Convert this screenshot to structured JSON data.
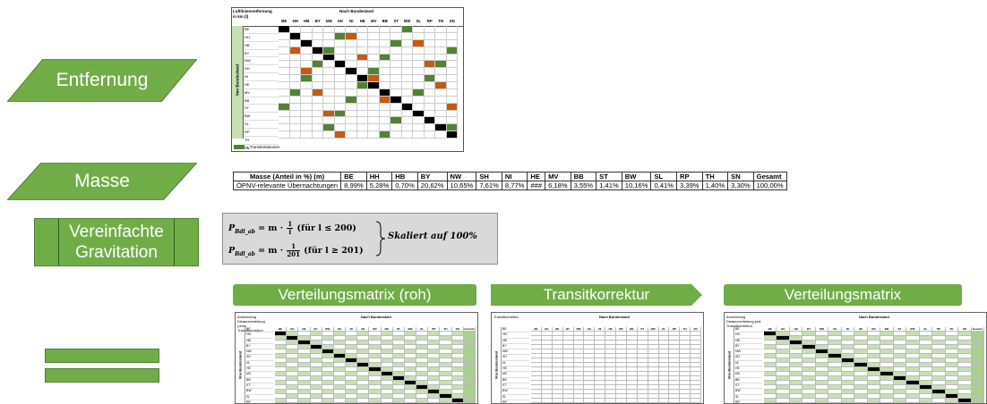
{
  "left": {
    "entfernung_label": "Entfernung",
    "masse_label": "Masse",
    "gravitation_label": "Vereinfachte Gravitation"
  },
  "distance_matrix": {
    "corner_title": "Luftlinienentfernung in km (l)",
    "col_group": "Nach Bundesland",
    "row_group": "Von Bundesland",
    "states": [
      "BE",
      "HH",
      "HB",
      "BY",
      "NW",
      "SH",
      "NI",
      "HE",
      "MV",
      "BB",
      "ST",
      "BW",
      "SL",
      "RP",
      "TH",
      "SN"
    ],
    "legend": "= Transitrelationen"
  },
  "mass_table": {
    "header_label": "Masse (Anteil in %) (m)",
    "row_label": "ÖPNV-relevante Übernachtungen",
    "columns": [
      "BE",
      "HH",
      "HB",
      "BY",
      "NW",
      "SH",
      "NI",
      "HE",
      "MV",
      "BB",
      "ST",
      "BW",
      "SL",
      "RP",
      "TH",
      "SN",
      "Gesamt"
    ],
    "values": [
      "8,99%",
      "5,28%",
      "0,70%",
      "20,62%",
      "10,65%",
      "7,61%",
      "8,77%",
      "###",
      "6,18%",
      "3,55%",
      "1,41%",
      "10,16%",
      "0,41%",
      "3,39%",
      "1,40%",
      "3,30%",
      "100,00%"
    ]
  },
  "formula": {
    "p_symbol": "P",
    "p_sub": "Bdl_ab",
    "m_eq": " = m · ",
    "frac1_num": "1",
    "frac1_den": "l",
    "cond1": " (für l ≤ 200)",
    "frac2_num": "1",
    "frac2_den": "201",
    "cond2": " (für l ≥ 201)",
    "scaled": "Skaliert auf 100%"
  },
  "headers": {
    "roh": "Verteilungsmatrix (roh)",
    "transit": "Transitkorrektur",
    "final": "Verteilungsmatrix"
  },
  "thumbs": {
    "roh_title": "Anwendung Distanzverteilung (ohne Transitkorrektur)",
    "transit_title": "Transitkorrektur",
    "final_title": "Anwendung Distanzverteilung (mit Transitkorrektur)",
    "nach": "Nach Bundesland",
    "von": "Von Bundesland",
    "gesamt": "Gesamt"
  },
  "colors": {
    "accent": "#70ad47",
    "dark_green": "#548235",
    "orange": "#c55a11",
    "formula_bg": "#d9d9d9"
  }
}
